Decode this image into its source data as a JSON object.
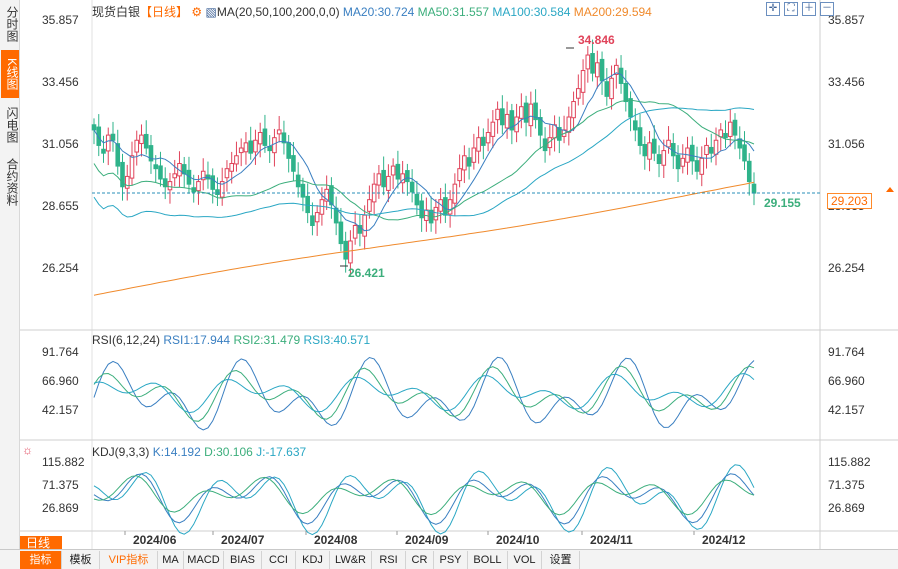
{
  "left_tabs": [
    {
      "label": "分时图",
      "active": false
    },
    {
      "label": "K线图",
      "active": true
    },
    {
      "label": "闪电图",
      "active": false
    },
    {
      "label": "合约资料",
      "active": false
    }
  ],
  "main_chart": {
    "symbol": "现货白银",
    "period": "【日线】",
    "indicator": "MA(20,50,100,200,0,0)",
    "ma20": "MA20:30.724",
    "ma50": "MA50:31.557",
    "ma100": "MA100:30.584",
    "ma200": "MA200:29.594",
    "y_ticks": [
      "35.857",
      "33.456",
      "31.056",
      "28.655",
      "26.254"
    ],
    "high_label": "34.846",
    "low_label": "26.421",
    "last_label": "29.155",
    "price_badge": "29.203",
    "colors": {
      "ma20": "#3a7fc1",
      "ma50": "#3cae7c",
      "ma100": "#2aa7c4",
      "ma200": "#f08a2c",
      "up": "#e0435a",
      "down": "#2eb38a"
    }
  },
  "rsi_panel": {
    "title": "RSI(6,12,24)",
    "rsi1": "RSI1:17.944",
    "rsi2": "RSI2:31.479",
    "rsi3": "RSI3:40.571",
    "y_ticks": [
      "91.764",
      "66.960",
      "42.157"
    ]
  },
  "kdj_panel": {
    "title": "KDJ(9,3,3)",
    "k": "K:14.192",
    "d": "D:30.106",
    "j": "J:-17.637",
    "y_ticks": [
      "115.882",
      "71.375",
      "26.869"
    ]
  },
  "x_axis": [
    "2024/06",
    "2024/07",
    "2024/08",
    "2024/09",
    "2024/10",
    "2024/11",
    "2024/12"
  ],
  "period_tab": "日线",
  "bottom_tabs": [
    "指标",
    "模板",
    "VIP指标",
    "MA",
    "MACD",
    "BIAS",
    "CCI",
    "KDJ",
    "LW&R",
    "RSI",
    "CR",
    "PSY",
    "BOLL",
    "VOL",
    "设置"
  ]
}
